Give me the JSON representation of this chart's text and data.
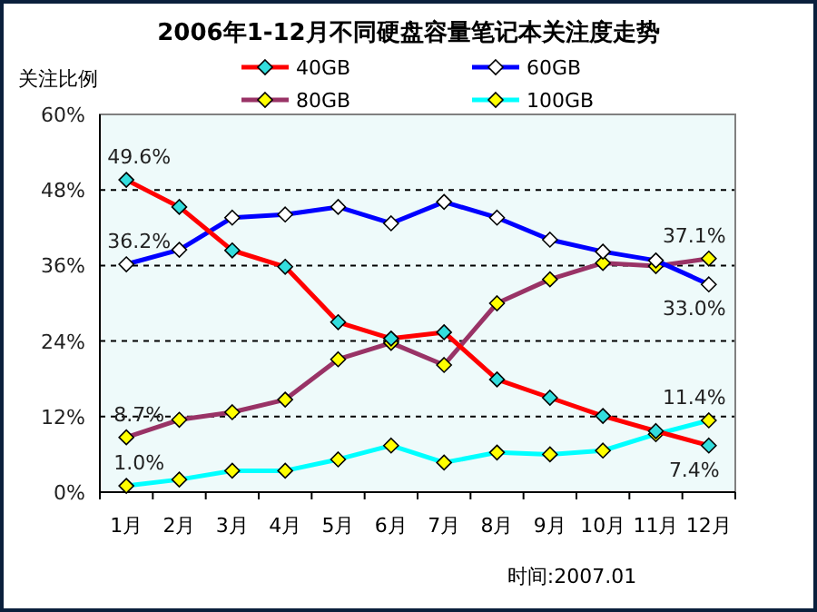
{
  "chart_data": {
    "type": "line",
    "title": "2006年1-12月不同硬盘容量笔记本关注度走势",
    "ylabel": "关注比例",
    "categories": [
      "1月",
      "2月",
      "3月",
      "4月",
      "5月",
      "6月",
      "7月",
      "8月",
      "9月",
      "10月",
      "11月",
      "12月"
    ],
    "series": [
      {
        "name": "40GB",
        "color": "#ff0000",
        "values": [
          49.6,
          45.3,
          38.4,
          35.8,
          27.0,
          24.4,
          25.4,
          17.9,
          15.0,
          12.1,
          9.7,
          7.4
        ],
        "value_labels": [
          "49.6%",
          null,
          null,
          null,
          null,
          null,
          null,
          null,
          null,
          null,
          null,
          "7.4%"
        ]
      },
      {
        "name": "60GB",
        "color": "#0000ff",
        "values": [
          36.2,
          38.5,
          43.6,
          44.1,
          45.3,
          42.7,
          46.1,
          43.6,
          40.1,
          38.2,
          36.8,
          33.0
        ],
        "value_labels": [
          "36.2%",
          null,
          null,
          null,
          null,
          null,
          null,
          null,
          null,
          null,
          null,
          "33.0%"
        ]
      },
      {
        "name": "80GB",
        "color": "#993366",
        "values": [
          8.7,
          11.5,
          12.7,
          14.7,
          21.1,
          23.7,
          20.2,
          30.0,
          33.8,
          36.4,
          35.9,
          37.1
        ],
        "value_labels": [
          "8.7%",
          null,
          null,
          null,
          null,
          null,
          null,
          null,
          null,
          null,
          null,
          "37.1%"
        ]
      },
      {
        "name": "100GB",
        "color": "#00ffff",
        "values": [
          1.0,
          2.0,
          3.4,
          3.4,
          5.2,
          7.4,
          4.7,
          6.3,
          6.0,
          6.6,
          9.2,
          11.4
        ],
        "value_labels": [
          "1.0%",
          null,
          null,
          null,
          null,
          null,
          null,
          null,
          null,
          null,
          null,
          "11.4%"
        ]
      }
    ],
    "ylim": [
      0,
      60
    ],
    "yticks": [
      {
        "value": 0,
        "label": "0%"
      },
      {
        "value": 12,
        "label": "12%"
      },
      {
        "value": 24,
        "label": "24%"
      },
      {
        "value": 36,
        "label": "36%"
      },
      {
        "value": 48,
        "label": "48%"
      },
      {
        "value": 60,
        "label": "60%"
      }
    ],
    "grid": "y",
    "legend": "top",
    "marker": "diamond",
    "line_style": "solid",
    "annotations": [
      "时间:2007.01"
    ]
  }
}
